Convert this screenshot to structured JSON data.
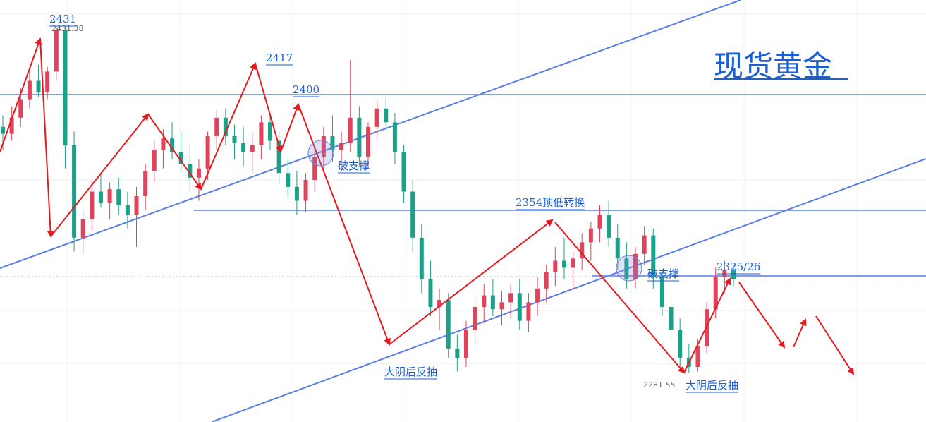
{
  "chart_data": {
    "type": "candlestick",
    "title": "现货黄金",
    "colors": {
      "up": "#e0435b",
      "down": "#1ba08a",
      "trendline": "#5b7fe8",
      "arrow": "#e6191e",
      "text": "#1a5fd6",
      "grid": "#eeeeee"
    },
    "ylim": [
      2270,
      2440
    ],
    "price_markers": [
      {
        "text": "2431",
        "price": 2431
      },
      {
        "text": "2431.38",
        "price": 2431.38
      },
      {
        "text": "2417",
        "price": 2417
      },
      {
        "text": "2400",
        "price": 2400
      },
      {
        "text": "2354顶低转换",
        "price": 2354
      },
      {
        "text": "2325/26",
        "price": 2325.5
      },
      {
        "text": "2281.55",
        "price": 2281.55
      }
    ],
    "annotations": [
      {
        "text": "破支撑"
      },
      {
        "text": "破支撑"
      },
      {
        "text": "大阴后反抽"
      },
      {
        "text": "大阴后反抽"
      }
    ],
    "horizontal_levels": [
      2400,
      2354,
      2325.5
    ],
    "candles_ohlc": [
      [
        2388,
        2393,
        2378,
        2385
      ],
      [
        2385,
        2397,
        2382,
        2392
      ],
      [
        2392,
        2405,
        2388,
        2400
      ],
      [
        2400,
        2412,
        2396,
        2408
      ],
      [
        2408,
        2415,
        2401,
        2403
      ],
      [
        2403,
        2414,
        2400,
        2412
      ],
      [
        2412,
        2431,
        2408,
        2430
      ],
      [
        2430,
        2431.38,
        2370,
        2380
      ],
      [
        2380,
        2386,
        2334,
        2340
      ],
      [
        2340,
        2352,
        2333,
        2348
      ],
      [
        2348,
        2365,
        2343,
        2360
      ],
      [
        2360,
        2368,
        2353,
        2355
      ],
      [
        2355,
        2364,
        2348,
        2361
      ],
      [
        2361,
        2366,
        2350,
        2354
      ],
      [
        2354,
        2360,
        2344,
        2350
      ],
      [
        2350,
        2362,
        2336,
        2358
      ],
      [
        2358,
        2372,
        2352,
        2369
      ],
      [
        2369,
        2382,
        2364,
        2378
      ],
      [
        2378,
        2387,
        2370,
        2383
      ],
      [
        2383,
        2390,
        2374,
        2377
      ],
      [
        2377,
        2386,
        2369,
        2372
      ],
      [
        2372,
        2380,
        2360,
        2366
      ],
      [
        2366,
        2374,
        2356,
        2370
      ],
      [
        2370,
        2386,
        2365,
        2384
      ],
      [
        2384,
        2395,
        2378,
        2392
      ],
      [
        2392,
        2396,
        2380,
        2384
      ],
      [
        2384,
        2389,
        2374,
        2381
      ],
      [
        2381,
        2388,
        2371,
        2377
      ],
      [
        2377,
        2385,
        2368,
        2380
      ],
      [
        2380,
        2393,
        2374,
        2390
      ],
      [
        2390,
        2394,
        2378,
        2382
      ],
      [
        2382,
        2386,
        2363,
        2368
      ],
      [
        2368,
        2374,
        2357,
        2362
      ],
      [
        2362,
        2369,
        2350,
        2356
      ],
      [
        2356,
        2368,
        2351,
        2365
      ],
      [
        2365,
        2379,
        2360,
        2375
      ],
      [
        2375,
        2388,
        2369,
        2384
      ],
      [
        2384,
        2393,
        2373,
        2378
      ],
      [
        2378,
        2386,
        2369,
        2381
      ],
      [
        2381,
        2417,
        2377,
        2392
      ],
      [
        2392,
        2397,
        2371,
        2375
      ],
      [
        2375,
        2390,
        2370,
        2388
      ],
      [
        2388,
        2400,
        2383,
        2396
      ],
      [
        2396,
        2401,
        2386,
        2390
      ],
      [
        2390,
        2394,
        2372,
        2377
      ],
      [
        2377,
        2380,
        2355,
        2360
      ],
      [
        2360,
        2365,
        2334,
        2340
      ],
      [
        2340,
        2346,
        2316,
        2322
      ],
      [
        2322,
        2330,
        2306,
        2310
      ],
      [
        2310,
        2318,
        2300,
        2313
      ],
      [
        2313,
        2316,
        2288,
        2292
      ],
      [
        2292,
        2298,
        2282,
        2288
      ],
      [
        2288,
        2304,
        2284,
        2300
      ],
      [
        2300,
        2314,
        2294,
        2310
      ],
      [
        2310,
        2320,
        2303,
        2315
      ],
      [
        2315,
        2322,
        2306,
        2309
      ],
      [
        2309,
        2317,
        2302,
        2312
      ],
      [
        2312,
        2320,
        2305,
        2316
      ],
      [
        2316,
        2322,
        2300,
        2304
      ],
      [
        2304,
        2316,
        2299,
        2312
      ],
      [
        2312,
        2323,
        2306,
        2318
      ],
      [
        2318,
        2328,
        2312,
        2325
      ],
      [
        2325,
        2336,
        2319,
        2330
      ],
      [
        2330,
        2340,
        2322,
        2327
      ],
      [
        2327,
        2334,
        2318,
        2331
      ],
      [
        2331,
        2342,
        2326,
        2338
      ],
      [
        2338,
        2347,
        2330,
        2344
      ],
      [
        2344,
        2354,
        2338,
        2350
      ],
      [
        2350,
        2356,
        2336,
        2340
      ],
      [
        2340,
        2346,
        2326,
        2331
      ],
      [
        2331,
        2338,
        2318,
        2322
      ],
      [
        2322,
        2336,
        2318,
        2333
      ],
      [
        2333,
        2345,
        2328,
        2341
      ],
      [
        2341,
        2344,
        2318,
        2323
      ],
      [
        2323,
        2326,
        2306,
        2310
      ],
      [
        2310,
        2315,
        2295,
        2300
      ],
      [
        2300,
        2305,
        2284,
        2288
      ],
      [
        2288,
        2294,
        2281.55,
        2284
      ],
      [
        2284,
        2296,
        2282,
        2293
      ],
      [
        2293,
        2312,
        2290,
        2309
      ],
      [
        2309,
        2327,
        2305,
        2323
      ],
      [
        2323,
        2330,
        2316,
        2326
      ],
      [
        2326,
        2328,
        2319,
        2322
      ]
    ]
  }
}
